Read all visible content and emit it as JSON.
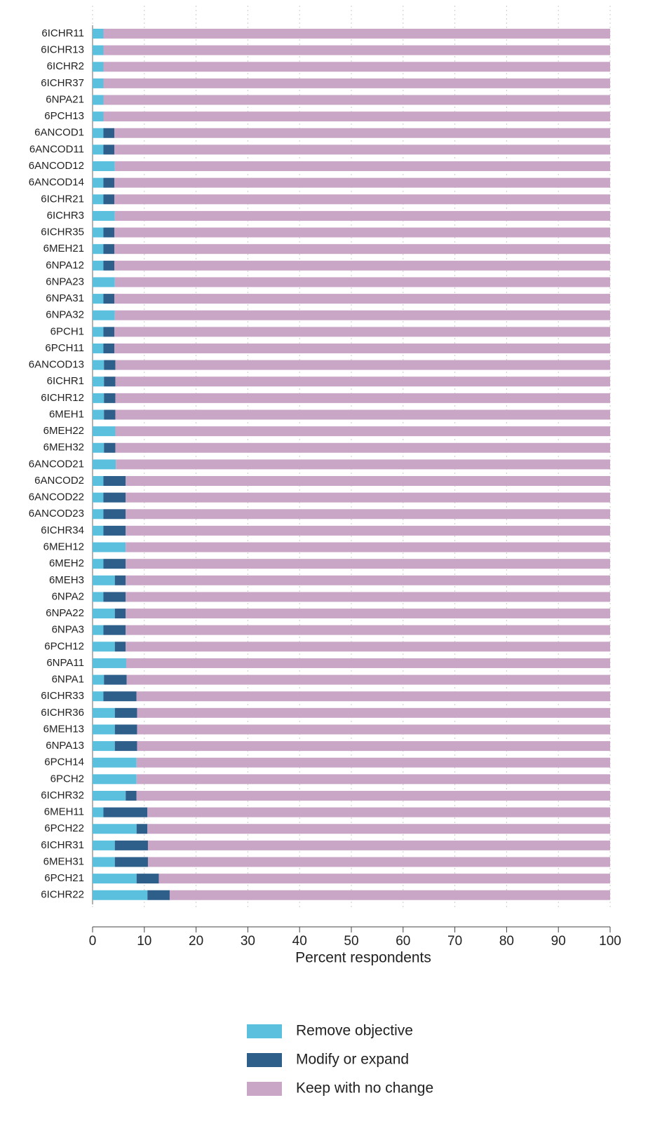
{
  "chart_data": {
    "type": "stacked-bar-horizontal",
    "x_label": "Percent respondents",
    "xlim": [
      0,
      100
    ],
    "xticks": [
      0,
      10,
      20,
      30,
      40,
      50,
      60,
      70,
      80,
      90,
      100
    ],
    "grid": true,
    "legend": "bottom",
    "categories": [
      "6ICHR11",
      "6ICHR13",
      "6ICHR2",
      "6ICHR37",
      "6NPA21",
      "6PCH13",
      "6ANCOD1",
      "6ANCOD11",
      "6ANCOD12",
      "6ANCOD14",
      "6ICHR21",
      "6ICHR3",
      "6ICHR35",
      "6MEH21",
      "6NPA12",
      "6NPA23",
      "6NPA31",
      "6NPA32",
      "6PCH1",
      "6PCH11",
      "6ANCOD13",
      "6ICHR1",
      "6ICHR12",
      "6MEH1",
      "6MEH22",
      "6MEH32",
      "6ANCOD21",
      "6ANCOD2",
      "6ANCOD22",
      "6ANCOD23",
      "6ICHR34",
      "6MEH12",
      "6MEH2",
      "6MEH3",
      "6NPA2",
      "6NPA22",
      "6NPA3",
      "6PCH12",
      "6NPA11",
      "6NPA1",
      "6ICHR33",
      "6ICHR36",
      "6MEH13",
      "6NPA13",
      "6PCH14",
      "6PCH2",
      "6ICHR32",
      "6MEH11",
      "6PCH22",
      "6ICHR31",
      "6MEH31",
      "6PCH21",
      "6ICHR22"
    ],
    "series": [
      {
        "name": "Remove objective",
        "color": "#5bc0de",
        "values": [
          2.1,
          2.1,
          2.1,
          2.1,
          2.1,
          2.1,
          2.1,
          2.1,
          4.3,
          2.1,
          2.1,
          4.3,
          2.1,
          2.1,
          2.1,
          4.3,
          2.1,
          4.3,
          2.1,
          2.1,
          2.2,
          2.2,
          2.2,
          2.2,
          4.4,
          2.2,
          4.5,
          2.1,
          2.1,
          2.1,
          2.1,
          6.4,
          2.1,
          4.3,
          2.1,
          4.3,
          2.1,
          4.3,
          6.5,
          2.2,
          2.1,
          4.3,
          4.3,
          4.3,
          8.5,
          8.5,
          6.4,
          2.1,
          8.5,
          4.3,
          4.3,
          8.5,
          10.6
        ]
      },
      {
        "name": "Modify or expand",
        "color": "#2e5f8a",
        "values": [
          0,
          0,
          0,
          0,
          0,
          0,
          2.1,
          2.1,
          0,
          2.1,
          2.1,
          0,
          2.1,
          2.1,
          2.1,
          0,
          2.1,
          0,
          2.1,
          2.1,
          2.2,
          2.2,
          2.2,
          2.2,
          0,
          2.2,
          0,
          4.3,
          4.3,
          4.3,
          4.3,
          0,
          4.3,
          2.1,
          4.3,
          2.1,
          4.3,
          2.1,
          0,
          4.4,
          6.4,
          4.3,
          4.3,
          4.3,
          0,
          0,
          2.1,
          8.5,
          2.1,
          6.4,
          6.4,
          4.3,
          4.3
        ]
      },
      {
        "name": "Keep with no change",
        "color": "#c9a6c6",
        "values": [
          97.9,
          97.9,
          97.9,
          97.9,
          97.9,
          97.9,
          95.8,
          95.8,
          95.7,
          95.8,
          95.8,
          95.7,
          95.8,
          95.8,
          95.8,
          95.7,
          95.8,
          95.7,
          95.8,
          95.8,
          95.6,
          95.6,
          95.6,
          95.6,
          95.6,
          95.6,
          95.5,
          93.6,
          93.6,
          93.6,
          93.6,
          93.6,
          93.6,
          93.6,
          93.6,
          93.6,
          93.6,
          93.6,
          93.5,
          93.4,
          91.5,
          91.4,
          91.4,
          91.4,
          91.5,
          91.5,
          91.5,
          89.4,
          89.4,
          89.3,
          89.3,
          87.2,
          85.1
        ]
      }
    ]
  }
}
